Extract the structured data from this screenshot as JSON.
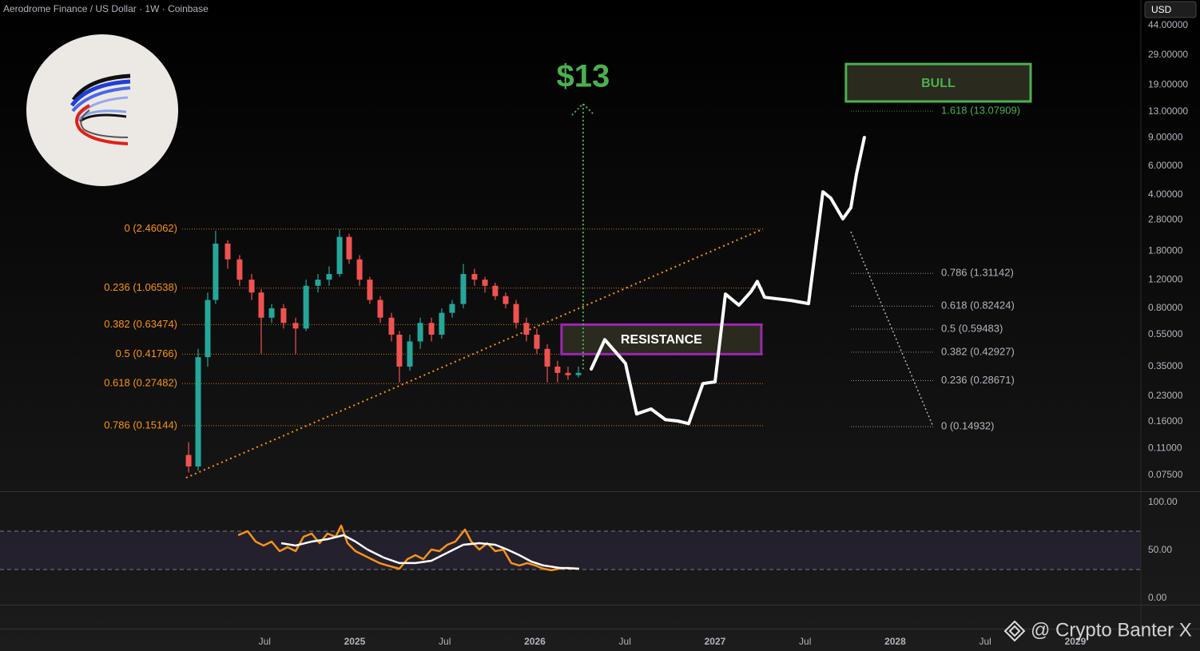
{
  "chart_data": [
    {
      "type": "candlestick",
      "title": "Aerodrome Finance / US Dollar · 1W · Coinbase",
      "currency": "USD",
      "log_scale": true,
      "xlim": [
        2023.031,
        2029.364
      ],
      "xticks": [
        {
          "value": 2024.5,
          "label": "Jul"
        },
        2025,
        {
          "value": 2025.5,
          "label": "Jul"
        },
        2026,
        {
          "value": 2026.5,
          "label": "Jul"
        },
        2027,
        {
          "value": 2027.5,
          "label": "Jul"
        },
        2028,
        {
          "value": 2028.5,
          "label": "Jul"
        },
        2029
      ],
      "ylim": [
        0.0598,
        63.2
      ],
      "yticks": [
        {
          "value": 44,
          "label": "44.00000"
        },
        {
          "value": 29,
          "label": "29.00000"
        },
        {
          "value": 19,
          "label": "19.00000"
        },
        {
          "value": 13,
          "label": "13.00000"
        },
        {
          "value": 9,
          "label": "9.00000"
        },
        {
          "value": 6,
          "label": "6.00000"
        },
        {
          "value": 4,
          "label": "4.00000"
        },
        {
          "value": 2.8,
          "label": "2.80000"
        },
        {
          "value": 1.8,
          "label": "1.80000"
        },
        {
          "value": 1.2,
          "label": "1.20000"
        },
        {
          "value": 0.8,
          "label": "0.80000"
        },
        {
          "value": 0.55,
          "label": "0.55000"
        },
        {
          "value": 0.35,
          "label": "0.35000"
        },
        {
          "value": 0.23,
          "label": "0.23000"
        },
        {
          "value": 0.16,
          "label": "0.16000"
        },
        {
          "value": 0.11,
          "label": "0.11000"
        },
        {
          "value": 0.075,
          "label": "0.07500"
        }
      ],
      "up_color": "#26a69a",
      "down_color": "#ef5350",
      "x": [
        2024.078,
        2024.131,
        2024.184,
        2024.228,
        2024.295,
        2024.361,
        2024.428,
        2024.481,
        2024.539,
        2024.605,
        2024.672,
        2024.73,
        2024.796,
        2024.858,
        2024.916,
        2024.969,
        2025.027,
        2025.084,
        2025.142,
        2025.204,
        2025.248,
        2025.306,
        2025.364,
        2025.426,
        2025.483,
        2025.541,
        2025.603,
        2025.665,
        2025.723,
        2025.78,
        2025.838,
        2025.896,
        2025.953,
        2026.011,
        2026.069,
        2026.126,
        2026.184,
        2026.242
      ],
      "open": [
        0.1,
        0.085,
        0.4,
        0.9,
        2.0,
        1.6,
        1.2,
        1.0,
        0.7,
        0.8,
        0.65,
        0.6,
        1.1,
        1.2,
        1.3,
        2.2,
        1.6,
        1.2,
        0.9,
        0.7,
        0.55,
        0.35,
        0.5,
        0.65,
        0.55,
        0.75,
        0.85,
        1.3,
        1.2,
        1.1,
        0.95,
        0.85,
        0.65,
        0.55,
        0.45,
        0.35,
        0.32,
        0.31
      ],
      "high": [
        0.12,
        0.45,
        1.0,
        2.4,
        2.1,
        1.7,
        1.3,
        1.05,
        0.85,
        0.85,
        0.7,
        1.2,
        1.3,
        1.45,
        2.45,
        2.3,
        1.7,
        1.25,
        0.95,
        0.75,
        0.58,
        0.55,
        0.7,
        0.7,
        0.8,
        0.9,
        1.5,
        1.4,
        1.25,
        1.15,
        1.0,
        0.9,
        0.7,
        0.6,
        0.48,
        0.38,
        0.35,
        0.35
      ],
      "low": [
        0.078,
        0.08,
        0.35,
        0.85,
        1.4,
        1.1,
        0.9,
        0.42,
        0.65,
        0.6,
        0.42,
        0.58,
        1.0,
        1.1,
        1.25,
        1.5,
        1.1,
        0.85,
        0.65,
        0.5,
        0.28,
        0.33,
        0.45,
        0.5,
        0.52,
        0.7,
        0.8,
        1.1,
        1.0,
        0.9,
        0.8,
        0.6,
        0.5,
        0.42,
        0.28,
        0.28,
        0.29,
        0.3
      ],
      "close": [
        0.085,
        0.4,
        0.9,
        2.0,
        1.6,
        1.2,
        1.0,
        0.7,
        0.8,
        0.65,
        0.6,
        1.1,
        1.2,
        1.3,
        2.2,
        1.6,
        1.2,
        0.9,
        0.7,
        0.55,
        0.35,
        0.5,
        0.65,
        0.55,
        0.75,
        0.85,
        1.3,
        1.2,
        1.1,
        0.95,
        0.85,
        0.65,
        0.55,
        0.45,
        0.35,
        0.32,
        0.31,
        0.32
      ],
      "fib_left": {
        "color": "#f7931a",
        "levels": [
          {
            "label": "0 (2.46062)",
            "value": 2.46062
          },
          {
            "label": "0.236 (1.06538)",
            "value": 1.06538
          },
          {
            "label": "0.382 (0.63474)",
            "value": 0.63474
          },
          {
            "label": "0.5 (0.41766)",
            "value": 0.41766
          },
          {
            "label": "0.618 (0.27482)",
            "value": 0.27482
          },
          {
            "label": "0.786 (0.15144)",
            "value": 0.15144
          }
        ]
      },
      "fib_right": {
        "color": "#b2b5be",
        "levels": [
          {
            "label": "1.618 (13.07909)",
            "value": 13.07909,
            "color": "#4caf50"
          },
          {
            "label": "0.786 (1.31142)",
            "value": 1.31142
          },
          {
            "label": "0.618 (0.82424)",
            "value": 0.82424
          },
          {
            "label": "0.5 (0.59483)",
            "value": 0.59483
          },
          {
            "label": "0.382 (0.42927)",
            "value": 0.42927
          },
          {
            "label": "0.236 (0.28671)",
            "value": 0.28671
          },
          {
            "label": "0 (0.14932)",
            "value": 0.14932
          }
        ],
        "diagonal": {
          "x": [
            2027.754,
            2028.211
          ],
          "y": [
            2.37,
            0.14932
          ]
        }
      },
      "trendline": {
        "color": "#f7931a",
        "x": [
          2024.064,
          2027.266
        ],
        "y": [
          0.0724,
          2.46062
        ]
      },
      "projection": {
        "color": "#ffffff",
        "x": [
          2026.313,
          2026.388,
          2026.446,
          2026.503,
          2026.565,
          2026.645,
          2026.725,
          2026.792,
          2026.854,
          2026.933,
          2027.0,
          2027.058,
          2027.133,
          2027.2,
          2027.235,
          2027.275,
          2027.421,
          2027.519,
          2027.599,
          2027.643,
          2027.71,
          2027.754,
          2027.785,
          2027.829
        ],
        "y": [
          0.3376,
          0.513,
          0.433,
          0.366,
          0.179,
          0.192,
          0.165,
          0.162,
          0.156,
          0.275,
          0.282,
          0.979,
          0.835,
          1.013,
          1.17,
          0.935,
          0.894,
          0.855,
          4.17,
          3.81,
          2.84,
          3.33,
          5.35,
          9.01
        ]
      },
      "target": {
        "label": "$13",
        "color": "#4caf50",
        "x": 2026.268,
        "y": [
          0.3376,
          14.5
        ]
      },
      "boxes": [
        {
          "label": "RESISTANCE",
          "border": "#9c27b0",
          "text_color": "#ffffff",
          "x": [
            2026.148,
            2027.257
          ],
          "y": [
            0.41766,
            0.63474
          ]
        },
        {
          "label": "BULL",
          "border": "#4caf50",
          "text_color": "#4caf50",
          "x": [
            2027.727,
            2028.752
          ],
          "y": [
            15.0,
            25.5
          ]
        }
      ],
      "watermark": "@ Crypto Banter X"
    },
    {
      "type": "line",
      "ylim": [
        -6.7,
        111.7
      ],
      "yticks": [
        {
          "value": 100,
          "label": "100.00"
        },
        {
          "value": 50,
          "label": "50.00"
        },
        {
          "value": 0,
          "label": "0.00"
        }
      ],
      "band": [
        30,
        70
      ],
      "series": [
        {
          "color": "#f7931a",
          "x": [
            2024.353,
            2024.406,
            2024.45,
            2024.494,
            2024.539,
            2024.583,
            2024.627,
            2024.672,
            2024.716,
            2024.761,
            2024.805,
            2024.849,
            2024.894,
            2024.925,
            2024.96,
            2025.004,
            2025.049,
            2025.093,
            2025.137,
            2025.182,
            2025.248,
            2025.293,
            2025.337,
            2025.381,
            2025.426,
            2025.47,
            2025.514,
            2025.559,
            2025.612,
            2025.647,
            2025.692,
            2025.736,
            2025.78,
            2025.825,
            2025.869,
            2025.914,
            2025.958,
            2026.002,
            2026.047,
            2026.091,
            2026.135,
            2026.18,
            2026.246
          ],
          "values": [
            65.8,
            70,
            59.2,
            55,
            59.2,
            49.2,
            53.3,
            49.2,
            64.2,
            67.5,
            57.5,
            67.5,
            64.2,
            75.8,
            57.5,
            49.2,
            45,
            40.8,
            36.7,
            34.2,
            30.8,
            40.8,
            45,
            40.8,
            50.8,
            49.2,
            55.8,
            59.2,
            71.7,
            59.2,
            50.8,
            57.5,
            49.2,
            50.8,
            36.7,
            34.2,
            36.7,
            34.2,
            30.8,
            29.2,
            30.8,
            31.7,
            30.8
          ]
        },
        {
          "color": "#ffffff",
          "x": [
            2024.592,
            2024.672,
            2024.761,
            2024.849,
            2024.938,
            2025.004,
            2025.071,
            2025.16,
            2025.248,
            2025.337,
            2025.426,
            2025.514,
            2025.603,
            2025.692,
            2025.78,
            2025.847,
            2025.914,
            2025.98,
            2026.047,
            2026.135,
            2026.246
          ],
          "values": [
            57.5,
            55,
            59.2,
            61.7,
            65.8,
            59.2,
            50.8,
            42.5,
            36.7,
            36.7,
            39.2,
            47.5,
            55.8,
            57.5,
            55.8,
            50.8,
            45,
            38.3,
            34.2,
            31.7,
            30.8
          ]
        }
      ]
    }
  ]
}
